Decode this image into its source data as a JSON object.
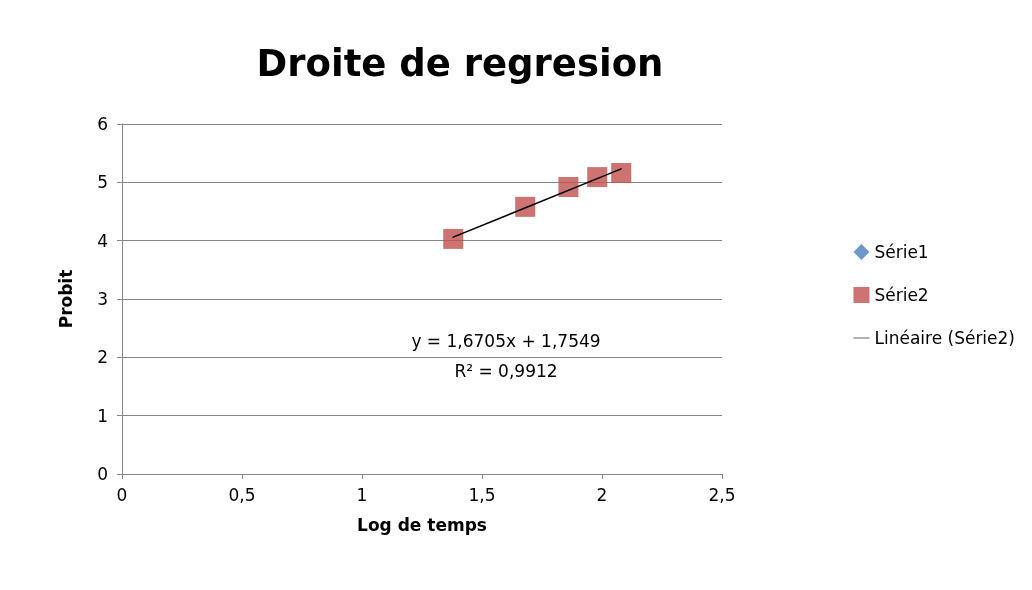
{
  "chart_data": {
    "type": "scatter",
    "title": "Droite de regresion",
    "xlabel": "Log de temps",
    "ylabel": "Probit",
    "xlim": [
      0,
      2.5
    ],
    "xticks": [
      0,
      {
        "value": 0.5,
        "label": "0,5"
      },
      1,
      {
        "value": 1.5,
        "label": "1,5"
      },
      2,
      {
        "value": 2.5,
        "label": "2,5"
      }
    ],
    "ylim": [
      0,
      6
    ],
    "yticks": [
      0,
      1,
      2,
      3,
      4,
      5,
      6
    ],
    "grid": "y",
    "legend": "right",
    "series": [
      {
        "name": "Série1",
        "color": "#4a7ebb",
        "marker": "diamond"
      },
      {
        "name": "Série2",
        "type": "scatter",
        "color": "#c0504d",
        "marker": "square",
        "x": [
          1.38,
          1.68,
          1.86,
          1.98,
          2.08
        ],
        "values": [
          4.03,
          4.58,
          4.92,
          5.09,
          5.16
        ]
      },
      {
        "name": "Linéaire (Série2)",
        "type": "line",
        "color": "#000000",
        "marker": "none",
        "x": [
          1.38,
          2.08
        ],
        "values": [
          4.06,
          5.23
        ]
      }
    ],
    "annotations": [
      "y = 1,6705x + 1,7549",
      "R² = 0,9912"
    ]
  }
}
